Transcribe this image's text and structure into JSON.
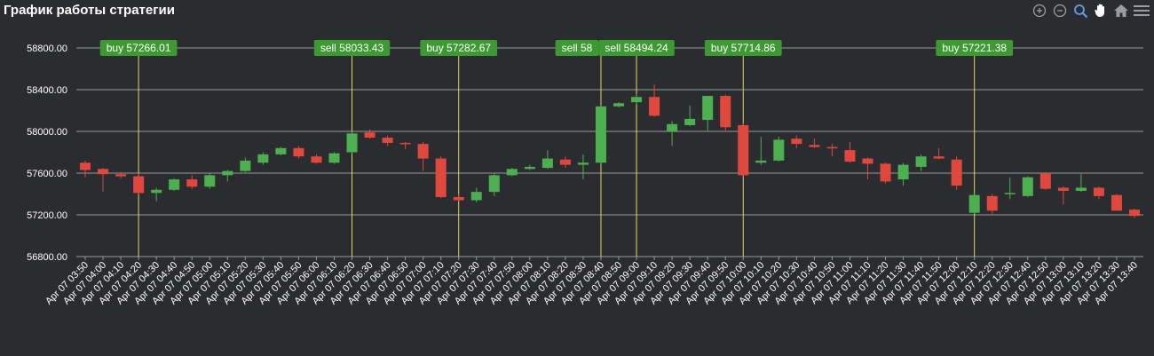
{
  "title": "График работы стратегии",
  "toolbar": {
    "icons": [
      "zoom-in-icon",
      "zoom-out-icon",
      "zoom-select-icon",
      "pan-hand-icon",
      "home-reset-icon",
      "menu-icon"
    ]
  },
  "colors": {
    "background": "#2b2c30",
    "up": "#4caf50",
    "down": "#e0483e",
    "grid": "#9a9a9a",
    "marker_line": "#e8d36a",
    "marker_label_bg": "#3d9a33",
    "text": "#ffffff",
    "zoom_active": "#5aa0f0"
  },
  "chart_data": {
    "type": "candlestick",
    "title": "График работы стратегии",
    "y_ticks": [
      "58800.00",
      "58400.00",
      "58000.00",
      "57600.00",
      "57200.00",
      "56800.00"
    ],
    "ylim": [
      56800,
      58800
    ],
    "grid": true,
    "x": [
      "Apr 07 03:50",
      "Apr 07 04:00",
      "Apr 07 04:10",
      "Apr 07 04:20",
      "Apr 07 04:30",
      "Apr 07 04:40",
      "Apr 07 04:50",
      "Apr 07 05:00",
      "Apr 07 05:10",
      "Apr 07 05:20",
      "Apr 07 05:30",
      "Apr 07 05:40",
      "Apr 07 05:50",
      "Apr 07 06:00",
      "Apr 07 06:10",
      "Apr 07 06:20",
      "Apr 07 06:30",
      "Apr 07 06:40",
      "Apr 07 06:50",
      "Apr 07 07:00",
      "Apr 07 07:10",
      "Apr 07 07:20",
      "Apr 07 07:30",
      "Apr 07 07:40",
      "Apr 07 07:50",
      "Apr 07 08:00",
      "Apr 07 08:10",
      "Apr 07 08:20",
      "Apr 07 08:30",
      "Apr 07 08:40",
      "Apr 07 08:50",
      "Apr 07 09:00",
      "Apr 07 09:10",
      "Apr 07 09:20",
      "Apr 07 09:30",
      "Apr 07 09:40",
      "Apr 07 09:50",
      "Apr 07 10:00",
      "Apr 07 10:10",
      "Apr 07 10:20",
      "Apr 07 10:30",
      "Apr 07 10:40",
      "Apr 07 10:50",
      "Apr 07 11:00",
      "Apr 07 11:10",
      "Apr 07 11:20",
      "Apr 07 11:30",
      "Apr 07 11:40",
      "Apr 07 11:50",
      "Apr 07 12:00",
      "Apr 07 12:10",
      "Apr 07 12:20",
      "Apr 07 12:30",
      "Apr 07 12:40",
      "Apr 07 12:50",
      "Apr 07 13:00",
      "Apr 07 13:10",
      "Apr 07 13:20",
      "Apr 07 13:30",
      "Apr 07 13:40"
    ],
    "ohlc": [
      [
        57700,
        57720,
        57560,
        57630
      ],
      [
        57640,
        57650,
        57420,
        57590
      ],
      [
        57590,
        57610,
        57550,
        57570
      ],
      [
        57570,
        57600,
        57400,
        57410
      ],
      [
        57410,
        57460,
        57330,
        57440
      ],
      [
        57440,
        57550,
        57430,
        57540
      ],
      [
        57540,
        57580,
        57450,
        57470
      ],
      [
        57470,
        57600,
        57450,
        57580
      ],
      [
        57580,
        57630,
        57520,
        57620
      ],
      [
        57620,
        57750,
        57610,
        57720
      ],
      [
        57700,
        57800,
        57680,
        57780
      ],
      [
        57780,
        57850,
        57770,
        57840
      ],
      [
        57840,
        57860,
        57740,
        57760
      ],
      [
        57760,
        57780,
        57690,
        57700
      ],
      [
        57700,
        57800,
        57690,
        57790
      ],
      [
        57800,
        58000,
        57790,
        57980
      ],
      [
        57990,
        58020,
        57930,
        57940
      ],
      [
        57940,
        57960,
        57860,
        57890
      ],
      [
        57890,
        57900,
        57830,
        57880
      ],
      [
        57880,
        57900,
        57620,
        57740
      ],
      [
        57740,
        57760,
        57360,
        57370
      ],
      [
        57370,
        57400,
        57330,
        57340
      ],
      [
        57340,
        57460,
        57320,
        57420
      ],
      [
        57420,
        57600,
        57380,
        57580
      ],
      [
        57580,
        57650,
        57570,
        57640
      ],
      [
        57640,
        57680,
        57630,
        57660
      ],
      [
        57650,
        57820,
        57640,
        57740
      ],
      [
        57730,
        57760,
        57650,
        57680
      ],
      [
        57680,
        57780,
        57540,
        57700
      ],
      [
        57700,
        58250,
        57690,
        58240
      ],
      [
        58240,
        58280,
        58230,
        58270
      ],
      [
        58280,
        58360,
        58260,
        58330
      ],
      [
        58330,
        58450,
        58140,
        58150
      ],
      [
        58000,
        58100,
        57860,
        58070
      ],
      [
        58060,
        58250,
        58050,
        58120
      ],
      [
        58110,
        58340,
        58000,
        58340
      ],
      [
        58340,
        58350,
        58010,
        58040
      ],
      [
        58060,
        58080,
        57580,
        57580
      ],
      [
        57700,
        57950,
        57680,
        57720
      ],
      [
        57720,
        57950,
        57710,
        57920
      ],
      [
        57930,
        57960,
        57840,
        57880
      ],
      [
        57870,
        57930,
        57840,
        57850
      ],
      [
        57850,
        57880,
        57760,
        57840
      ],
      [
        57820,
        57900,
        57700,
        57710
      ],
      [
        57740,
        57750,
        57540,
        57690
      ],
      [
        57690,
        57700,
        57500,
        57520
      ],
      [
        57540,
        57700,
        57480,
        57680
      ],
      [
        57660,
        57780,
        57620,
        57760
      ],
      [
        57760,
        57840,
        57730,
        57740
      ],
      [
        57730,
        57760,
        57440,
        57480
      ],
      [
        57220,
        57400,
        57210,
        57390
      ],
      [
        57380,
        57400,
        57210,
        57240
      ],
      [
        57400,
        57560,
        57350,
        57410
      ],
      [
        57380,
        57570,
        57370,
        57560
      ],
      [
        57600,
        57610,
        57440,
        57450
      ],
      [
        57460,
        57470,
        57300,
        57430
      ],
      [
        57430,
        57590,
        57420,
        57460
      ],
      [
        57460,
        57470,
        57350,
        57380
      ],
      [
        57390,
        57400,
        57240,
        57240
      ],
      [
        57250,
        57260,
        57170,
        57190
      ]
    ],
    "markers": [
      {
        "index": 3,
        "label": "buy 57266.01"
      },
      {
        "index": 15,
        "label": "sell 58033.43"
      },
      {
        "index": 21,
        "label": "buy 57282.67"
      },
      {
        "index": 29,
        "label": "sell 58"
      },
      {
        "index": 31,
        "label": "sell 58494.24"
      },
      {
        "index": 37,
        "label": "buy 57714.86"
      },
      {
        "index": 50,
        "label": "buy 57221.38"
      }
    ]
  }
}
